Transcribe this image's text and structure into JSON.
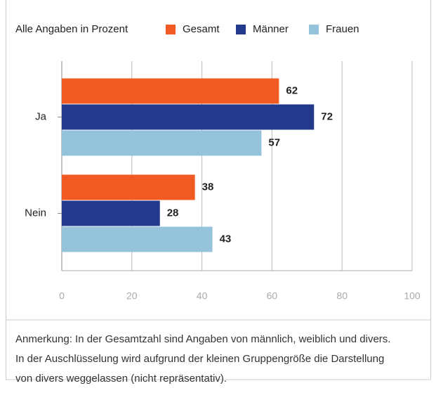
{
  "chart_data": {
    "type": "hbar",
    "subtitle": "Alle Angaben in Prozent",
    "categories": [
      "Ja",
      "Nein"
    ],
    "series": [
      {
        "name": "Gesamt",
        "color": "#f15a22",
        "values": [
          62,
          38
        ]
      },
      {
        "name": "Männer",
        "color": "#233a8c",
        "values": [
          72,
          28
        ]
      },
      {
        "name": "Frauen",
        "color": "#96c3dc",
        "values": [
          57,
          43
        ]
      }
    ],
    "xlim": [
      0,
      100
    ],
    "xticks": [
      0,
      20,
      40,
      60,
      80,
      100
    ],
    "grid": true,
    "notes": [
      "Anmerkung: In der Gesamtzahl sind Angaben von männlich, weiblich und divers.",
      "In der Auschlüsselung wird aufgrund der kleinen Gruppengröße die Darstellung",
      "von divers weggelassen (nicht repräsentativ)."
    ]
  }
}
